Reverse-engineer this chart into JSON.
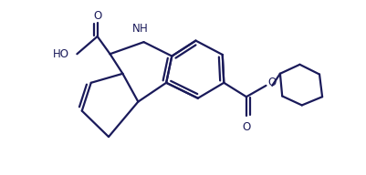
{
  "bg_color": "#ffffff",
  "line_color": "#1a1a5a",
  "line_width": 1.6,
  "figsize": [
    4.02,
    1.92
  ],
  "dpi": 100,
  "xlim": [
    0,
    10.05
  ],
  "ylim": [
    0,
    4.8
  ]
}
